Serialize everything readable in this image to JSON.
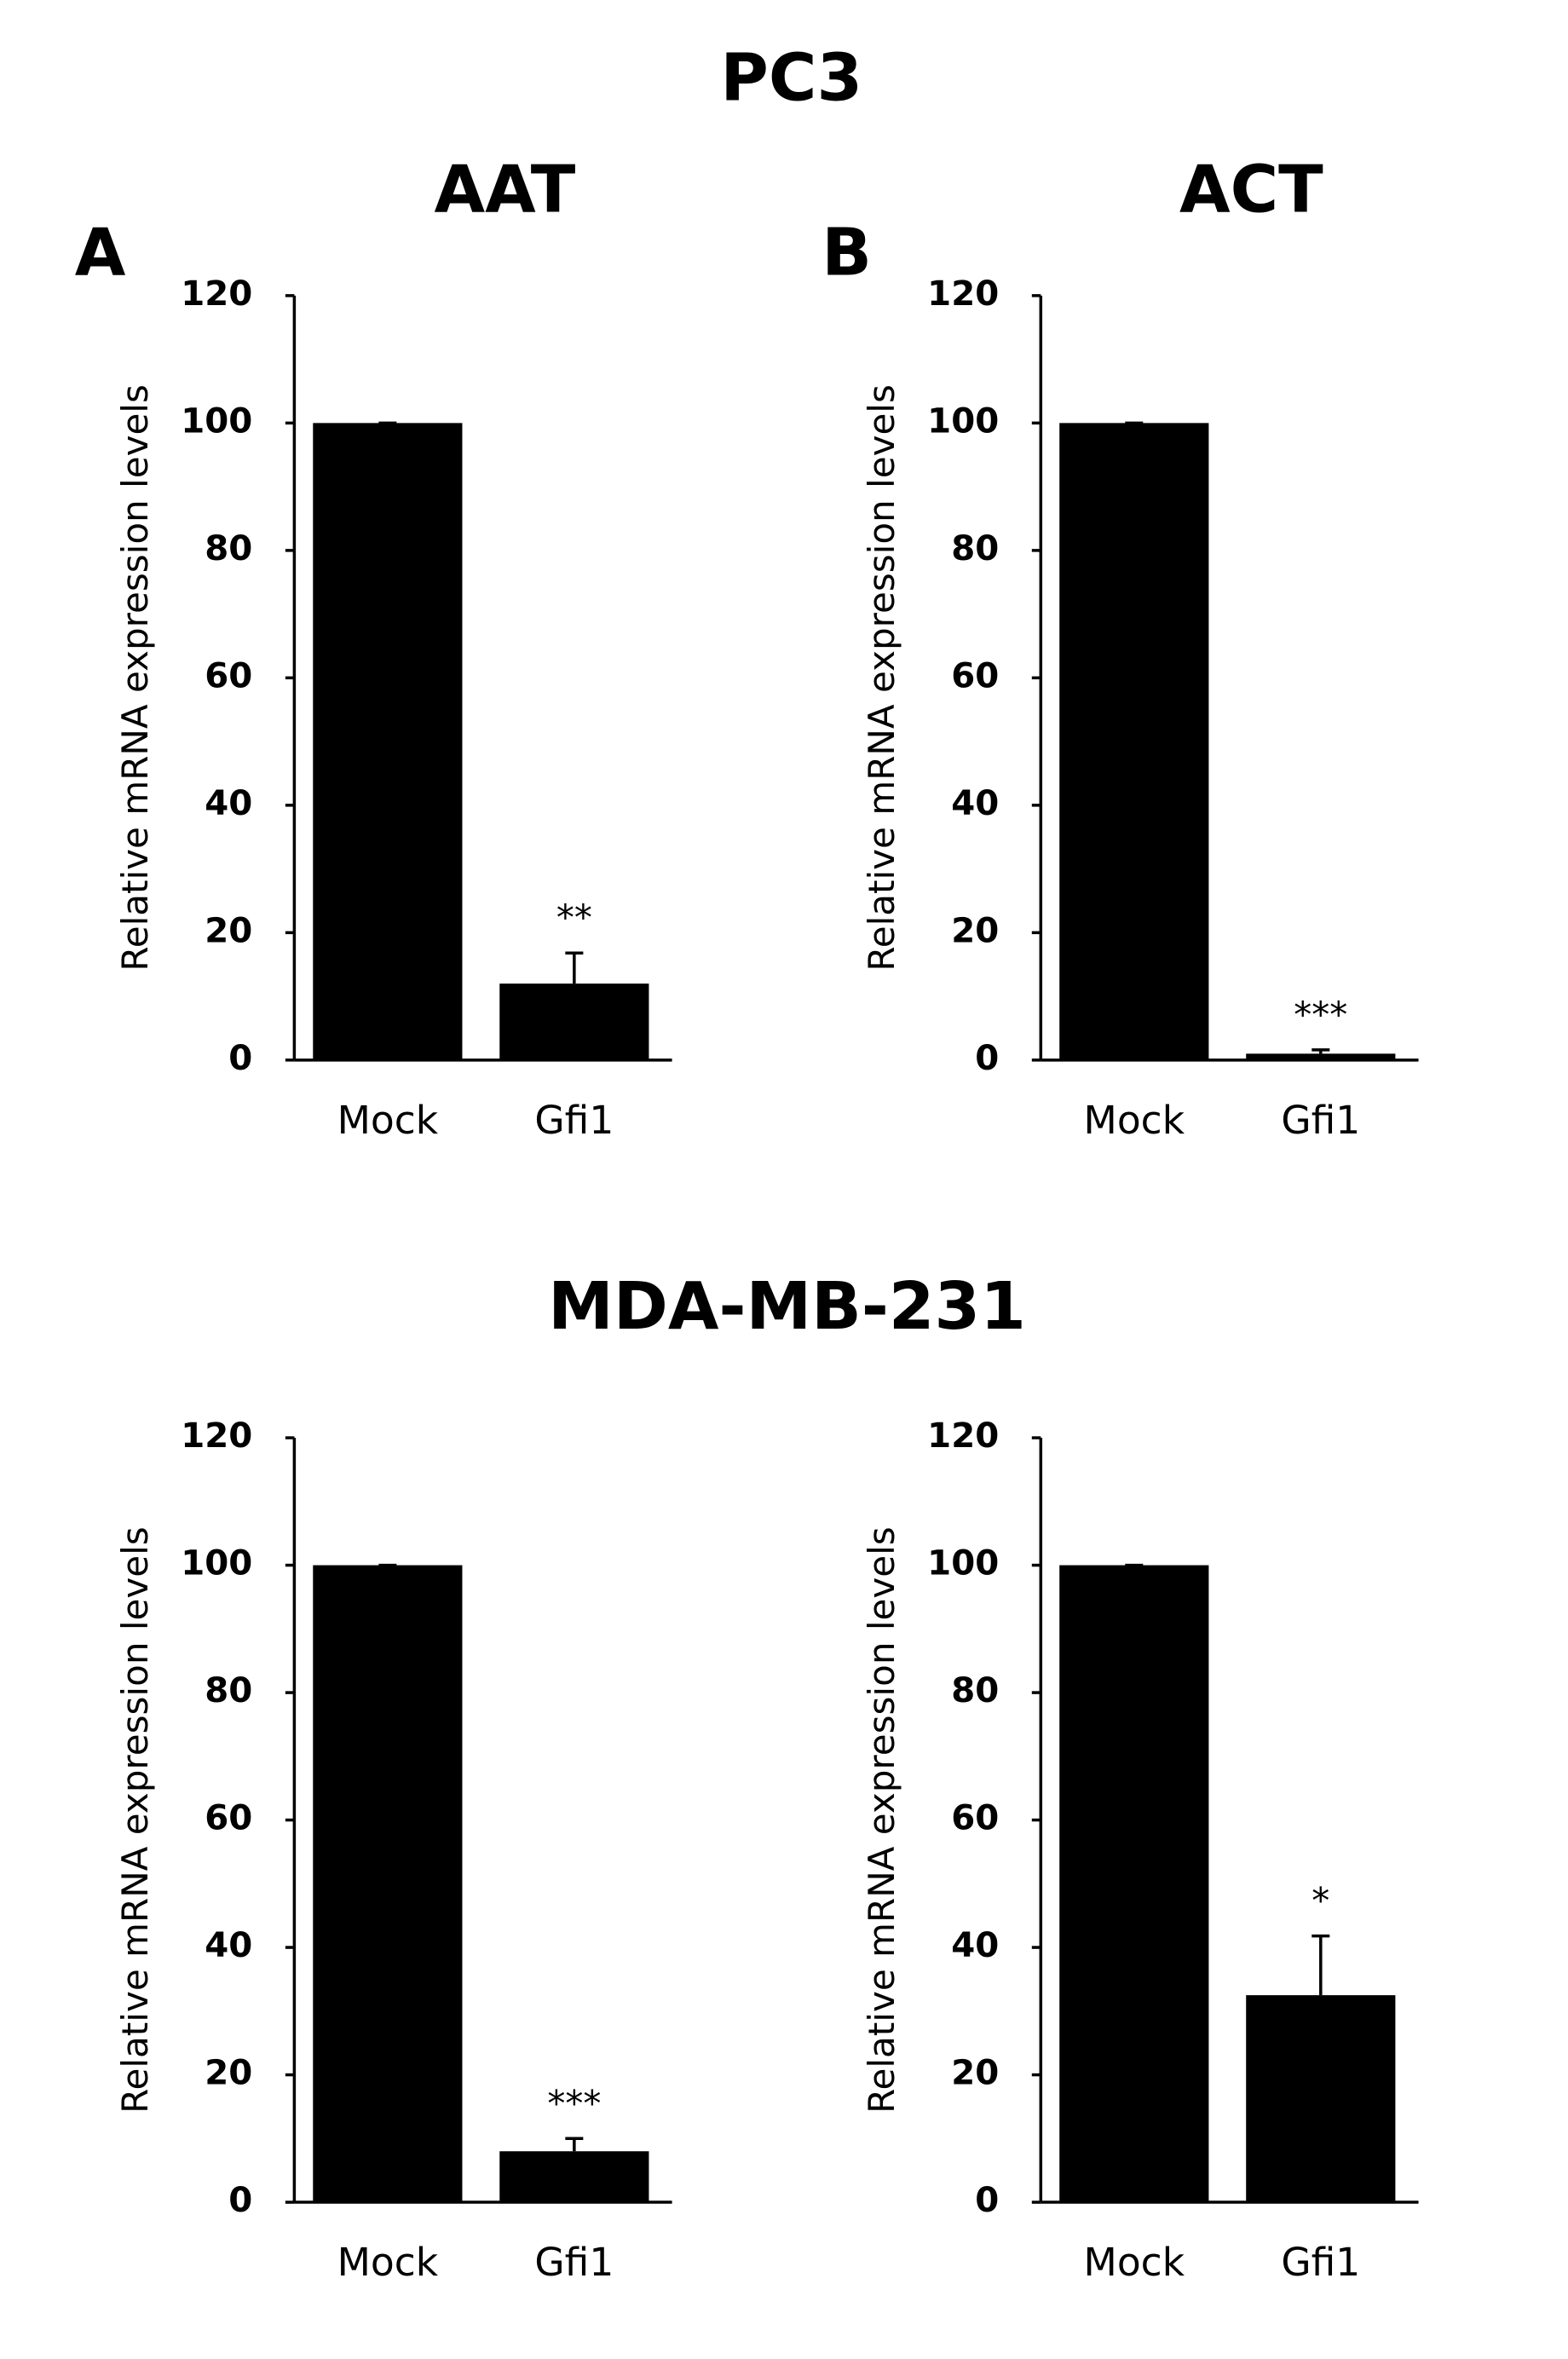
{
  "headings": [
    "PC3",
    "MDA-MB-231"
  ],
  "chart_data": [
    {
      "type": "bar",
      "title": "AAT",
      "panel": "A",
      "ylabel": "Relative mRNA expression levels",
      "categories": [
        "Mock",
        "Gfi1"
      ],
      "values": [
        100,
        12
      ],
      "errors": [
        0,
        4.8
      ],
      "annotations": [
        null,
        "**"
      ],
      "color": "#000000",
      "ylim": [
        0,
        120
      ],
      "yticks": [
        0,
        20,
        40,
        60,
        80,
        100,
        120
      ]
    },
    {
      "type": "bar",
      "title": "ACT",
      "panel": "B",
      "ylabel": "Relative mRNA expression levels",
      "categories": [
        "Mock",
        "Gfi1"
      ],
      "values": [
        100,
        1
      ],
      "errors": [
        0,
        0.6
      ],
      "annotations": [
        null,
        "***"
      ],
      "color": "#000000",
      "ylim": [
        0,
        120
      ],
      "yticks": [
        0,
        20,
        40,
        60,
        80,
        100,
        120
      ]
    },
    {
      "type": "bar",
      "ylabel": "Relative mRNA expression levels",
      "categories": [
        "Mock",
        "Gfi1"
      ],
      "values": [
        100,
        8
      ],
      "errors": [
        0,
        2
      ],
      "annotations": [
        null,
        "***"
      ],
      "color": "#000000",
      "ylim": [
        0,
        120
      ],
      "yticks": [
        0,
        20,
        40,
        60,
        80,
        100,
        120
      ]
    },
    {
      "type": "bar",
      "ylabel": "Relative mRNA expression levels",
      "categories": [
        "Mock",
        "Gfi1"
      ],
      "values": [
        100,
        32.5
      ],
      "errors": [
        0,
        9.3
      ],
      "annotations": [
        null,
        "*"
      ],
      "color": "#000000",
      "ylim": [
        0,
        120
      ],
      "yticks": [
        0,
        20,
        40,
        60,
        80,
        100,
        120
      ]
    }
  ]
}
